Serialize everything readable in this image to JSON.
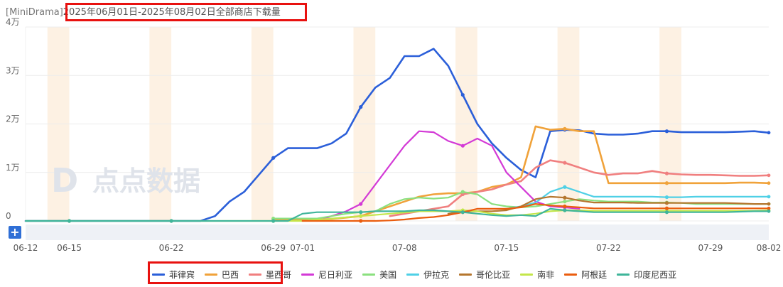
{
  "header": {
    "brand_tag": "[MiniDrama]",
    "period_title": "2025年06月01日-2025年08月02日全部商店下载量"
  },
  "toolbar": {
    "zoom_button": "+"
  },
  "watermark": "点点数据",
  "colors": {
    "highlight_box": "#e8110f",
    "weekend_band": "#fdf1e3",
    "grid": "#ececec",
    "zoom_bar": "#eef1f6"
  },
  "chart_data": {
    "type": "line",
    "title": "2025年06月01日-2025年08月02日全部商店下载量",
    "y_ticks": [
      "0",
      "1万",
      "2万",
      "3万",
      "4万"
    ],
    "ylim": [
      0,
      40000
    ],
    "x_tick_labels": [
      "06-12",
      "06-15",
      "06-22",
      "06-29",
      "07-01",
      "07-08",
      "07-15",
      "07-22",
      "07-29",
      "08-02"
    ],
    "x_tick_days": [
      -19,
      -16,
      -9,
      -2,
      0,
      7,
      14,
      21,
      28,
      32
    ],
    "xlim": [
      -19,
      32
    ],
    "x_day_zero": "07-01",
    "weekend_bands": [
      [
        -17.5,
        -16
      ],
      [
        -10.5,
        -9
      ],
      [
        -3.5,
        -2
      ],
      [
        3.5,
        5
      ],
      [
        10.5,
        12
      ],
      [
        17.5,
        19
      ],
      [
        24.5,
        26
      ]
    ],
    "legend_position": "bottom",
    "grid": true,
    "series": [
      {
        "name": "菲律宾",
        "color": "#2b5fd9",
        "highlighted": true,
        "points": [
          [
            -19,
            0
          ],
          [
            -16,
            0
          ],
          [
            -9,
            0
          ],
          [
            -8,
            0
          ],
          [
            -7,
            0
          ],
          [
            -6,
            1000
          ],
          [
            -5,
            4000
          ],
          [
            -4,
            6000
          ],
          [
            -3,
            9500
          ],
          [
            -2,
            13000
          ],
          [
            -1,
            15000
          ],
          [
            0,
            15000
          ],
          [
            1,
            15000
          ],
          [
            2,
            16000
          ],
          [
            3,
            18000
          ],
          [
            4,
            23500
          ],
          [
            5,
            27500
          ],
          [
            6,
            29500
          ],
          [
            7,
            34000
          ],
          [
            8,
            34000
          ],
          [
            9,
            35500
          ],
          [
            10,
            32000
          ],
          [
            11,
            26000
          ],
          [
            12,
            20000
          ],
          [
            13,
            16000
          ],
          [
            14,
            13000
          ],
          [
            15,
            10500
          ],
          [
            16,
            9000
          ],
          [
            17,
            18500
          ],
          [
            18,
            18800
          ],
          [
            19,
            18700
          ],
          [
            20,
            18000
          ],
          [
            21,
            17800
          ],
          [
            22,
            17800
          ],
          [
            23,
            18000
          ],
          [
            24,
            18500
          ],
          [
            25,
            18500
          ],
          [
            26,
            18300
          ],
          [
            27,
            18300
          ],
          [
            28,
            18300
          ],
          [
            29,
            18300
          ],
          [
            30,
            18400
          ],
          [
            31,
            18500
          ],
          [
            32,
            18200
          ]
        ]
      },
      {
        "name": "巴西",
        "color": "#f0a23a",
        "highlighted": true,
        "points": [
          [
            -2,
            200
          ],
          [
            0,
            200
          ],
          [
            2,
            400
          ],
          [
            4,
            1000
          ],
          [
            6,
            3000
          ],
          [
            7,
            4000
          ],
          [
            8,
            5000
          ],
          [
            9,
            5500
          ],
          [
            10,
            5700
          ],
          [
            11,
            5700
          ],
          [
            12,
            6000
          ],
          [
            13,
            7000
          ],
          [
            14,
            7500
          ],
          [
            15,
            9000
          ],
          [
            16,
            19500
          ],
          [
            17,
            18800
          ],
          [
            18,
            19000
          ],
          [
            19,
            18500
          ],
          [
            20,
            18500
          ],
          [
            21,
            7800
          ],
          [
            22,
            7800
          ],
          [
            23,
            7800
          ],
          [
            24,
            7800
          ],
          [
            25,
            7800
          ],
          [
            26,
            7800
          ],
          [
            27,
            7800
          ],
          [
            28,
            7800
          ],
          [
            29,
            7800
          ],
          [
            30,
            7900
          ],
          [
            31,
            7900
          ],
          [
            32,
            7800
          ]
        ]
      },
      {
        "name": "墨西哥",
        "color": "#f07f7f",
        "highlighted": true,
        "points": [
          [
            6,
            1000
          ],
          [
            7,
            1500
          ],
          [
            8,
            2000
          ],
          [
            9,
            2500
          ],
          [
            10,
            3000
          ],
          [
            11,
            5500
          ],
          [
            12,
            6000
          ],
          [
            13,
            6500
          ],
          [
            14,
            7500
          ],
          [
            15,
            8200
          ],
          [
            16,
            11000
          ],
          [
            17,
            12500
          ],
          [
            18,
            12000
          ],
          [
            19,
            11000
          ],
          [
            20,
            10000
          ],
          [
            21,
            9500
          ],
          [
            22,
            9800
          ],
          [
            23,
            9800
          ],
          [
            24,
            10300
          ],
          [
            25,
            9800
          ],
          [
            26,
            9600
          ],
          [
            27,
            9500
          ],
          [
            28,
            9500
          ],
          [
            29,
            9400
          ],
          [
            30,
            9300
          ],
          [
            31,
            9300
          ],
          [
            32,
            9400
          ]
        ]
      },
      {
        "name": "尼日利亚",
        "color": "#d33ad6",
        "highlighted": false,
        "points": [
          [
            1,
            0
          ],
          [
            2,
            1000
          ],
          [
            3,
            2000
          ],
          [
            4,
            3500
          ],
          [
            5,
            7500
          ],
          [
            6,
            11500
          ],
          [
            7,
            15500
          ],
          [
            8,
            18500
          ],
          [
            9,
            18300
          ],
          [
            10,
            16500
          ],
          [
            11,
            15500
          ],
          [
            12,
            17000
          ],
          [
            13,
            15500
          ],
          [
            14,
            10000
          ],
          [
            15,
            7000
          ],
          [
            16,
            4000
          ],
          [
            17,
            3000
          ],
          [
            18,
            2800
          ],
          [
            19,
            2500
          ]
        ]
      },
      {
        "name": "美国",
        "color": "#8be07f",
        "highlighted": false,
        "points": [
          [
            -2,
            500
          ],
          [
            -1,
            500
          ],
          [
            0,
            500
          ],
          [
            1,
            500
          ],
          [
            2,
            1000
          ],
          [
            3,
            1500
          ],
          [
            4,
            1800
          ],
          [
            5,
            2000
          ],
          [
            6,
            3500
          ],
          [
            7,
            4500
          ],
          [
            8,
            4800
          ],
          [
            9,
            4600
          ],
          [
            10,
            4800
          ],
          [
            11,
            6000
          ],
          [
            12,
            5500
          ],
          [
            13,
            3500
          ],
          [
            14,
            3000
          ],
          [
            15,
            2800
          ],
          [
            16,
            3000
          ],
          [
            17,
            3500
          ],
          [
            18,
            4000
          ],
          [
            19,
            4500
          ],
          [
            20,
            4200
          ],
          [
            21,
            4000
          ],
          [
            22,
            4000
          ],
          [
            23,
            4000
          ],
          [
            24,
            3800
          ],
          [
            25,
            3800
          ],
          [
            26,
            3700
          ],
          [
            27,
            3500
          ],
          [
            28,
            3500
          ],
          [
            29,
            3500
          ],
          [
            30,
            3500
          ],
          [
            31,
            3500
          ],
          [
            32,
            3500
          ]
        ]
      },
      {
        "name": "伊拉克",
        "color": "#4fd0e6",
        "highlighted": false,
        "points": [
          [
            14,
            2500
          ],
          [
            15,
            3000
          ],
          [
            16,
            3800
          ],
          [
            17,
            6000
          ],
          [
            18,
            7000
          ],
          [
            19,
            6000
          ],
          [
            20,
            5000
          ],
          [
            21,
            5000
          ],
          [
            22,
            5000
          ],
          [
            23,
            5000
          ],
          [
            24,
            5000
          ],
          [
            25,
            4900
          ],
          [
            26,
            4900
          ],
          [
            27,
            5000
          ],
          [
            28,
            5000
          ],
          [
            29,
            5000
          ],
          [
            30,
            5000
          ],
          [
            31,
            5000
          ],
          [
            32,
            5000
          ]
        ]
      },
      {
        "name": "哥伦比亚",
        "color": "#b5762e",
        "highlighted": false,
        "points": [
          [
            10,
            1500
          ],
          [
            11,
            2000
          ],
          [
            12,
            2000
          ],
          [
            13,
            2000
          ],
          [
            14,
            2200
          ],
          [
            15,
            3000
          ],
          [
            16,
            4500
          ],
          [
            17,
            5000
          ],
          [
            18,
            4800
          ],
          [
            19,
            4200
          ],
          [
            20,
            3800
          ],
          [
            21,
            3800
          ],
          [
            22,
            3800
          ],
          [
            23,
            3700
          ],
          [
            24,
            3700
          ],
          [
            25,
            3700
          ],
          [
            26,
            3700
          ],
          [
            27,
            3700
          ],
          [
            28,
            3700
          ],
          [
            29,
            3700
          ],
          [
            30,
            3600
          ],
          [
            31,
            3500
          ],
          [
            32,
            3500
          ]
        ]
      },
      {
        "name": "南非",
        "color": "#c4e64a",
        "highlighted": false,
        "points": [
          [
            -19,
            0
          ],
          [
            -16,
            0
          ],
          [
            -9,
            0
          ],
          [
            -2,
            0
          ],
          [
            0,
            0
          ],
          [
            2,
            500
          ],
          [
            4,
            1000
          ],
          [
            6,
            1500
          ],
          [
            8,
            2000
          ],
          [
            10,
            2000
          ],
          [
            11,
            2200
          ],
          [
            12,
            2000
          ],
          [
            13,
            1500
          ],
          [
            14,
            1200
          ],
          [
            15,
            1200
          ],
          [
            16,
            1500
          ],
          [
            17,
            2000
          ],
          [
            18,
            2200
          ],
          [
            19,
            2200
          ],
          [
            20,
            2100
          ],
          [
            21,
            2100
          ],
          [
            22,
            2100
          ],
          [
            23,
            2100
          ],
          [
            24,
            2100
          ],
          [
            25,
            2100
          ],
          [
            26,
            2100
          ],
          [
            27,
            2100
          ],
          [
            28,
            2100
          ],
          [
            29,
            2100
          ],
          [
            30,
            2100
          ],
          [
            31,
            2100
          ],
          [
            32,
            2200
          ]
        ]
      },
      {
        "name": "阿根廷",
        "color": "#ea5d0f",
        "highlighted": false,
        "points": [
          [
            0,
            0
          ],
          [
            1,
            0
          ],
          [
            2,
            0
          ],
          [
            3,
            0
          ],
          [
            4,
            0
          ],
          [
            5,
            0
          ],
          [
            6,
            100
          ],
          [
            7,
            300
          ],
          [
            8,
            600
          ],
          [
            9,
            800
          ],
          [
            10,
            1200
          ],
          [
            11,
            1800
          ],
          [
            12,
            2500
          ],
          [
            13,
            2500
          ],
          [
            14,
            2500
          ],
          [
            15,
            2800
          ],
          [
            16,
            3500
          ],
          [
            17,
            3200
          ],
          [
            18,
            3000
          ],
          [
            19,
            2800
          ],
          [
            20,
            2600
          ],
          [
            21,
            2600
          ],
          [
            22,
            2600
          ],
          [
            23,
            2600
          ],
          [
            24,
            2600
          ],
          [
            25,
            2600
          ],
          [
            26,
            2600
          ],
          [
            27,
            2600
          ],
          [
            28,
            2600
          ],
          [
            29,
            2600
          ],
          [
            30,
            2600
          ],
          [
            31,
            2600
          ],
          [
            32,
            2600
          ]
        ]
      },
      {
        "name": "印度尼西亚",
        "color": "#3fb59a",
        "highlighted": false,
        "points": [
          [
            -19,
            0
          ],
          [
            -16,
            0
          ],
          [
            -9,
            0
          ],
          [
            -2,
            0
          ],
          [
            -1,
            0
          ],
          [
            0,
            1500
          ],
          [
            1,
            1800
          ],
          [
            2,
            1800
          ],
          [
            3,
            1800
          ],
          [
            4,
            1800
          ],
          [
            5,
            2000
          ],
          [
            6,
            2000
          ],
          [
            7,
            2000
          ],
          [
            8,
            2200
          ],
          [
            9,
            2200
          ],
          [
            10,
            2000
          ],
          [
            11,
            1800
          ],
          [
            12,
            1500
          ],
          [
            13,
            1200
          ],
          [
            14,
            1000
          ],
          [
            15,
            1200
          ],
          [
            16,
            1000
          ],
          [
            17,
            2500
          ],
          [
            18,
            2200
          ],
          [
            19,
            2000
          ],
          [
            20,
            1800
          ],
          [
            21,
            1800
          ],
          [
            22,
            1800
          ],
          [
            23,
            1800
          ],
          [
            24,
            1800
          ],
          [
            25,
            1800
          ],
          [
            26,
            1800
          ],
          [
            27,
            1800
          ],
          [
            28,
            1800
          ],
          [
            29,
            1800
          ],
          [
            30,
            1900
          ],
          [
            31,
            2000
          ],
          [
            32,
            2000
          ]
        ]
      }
    ]
  }
}
